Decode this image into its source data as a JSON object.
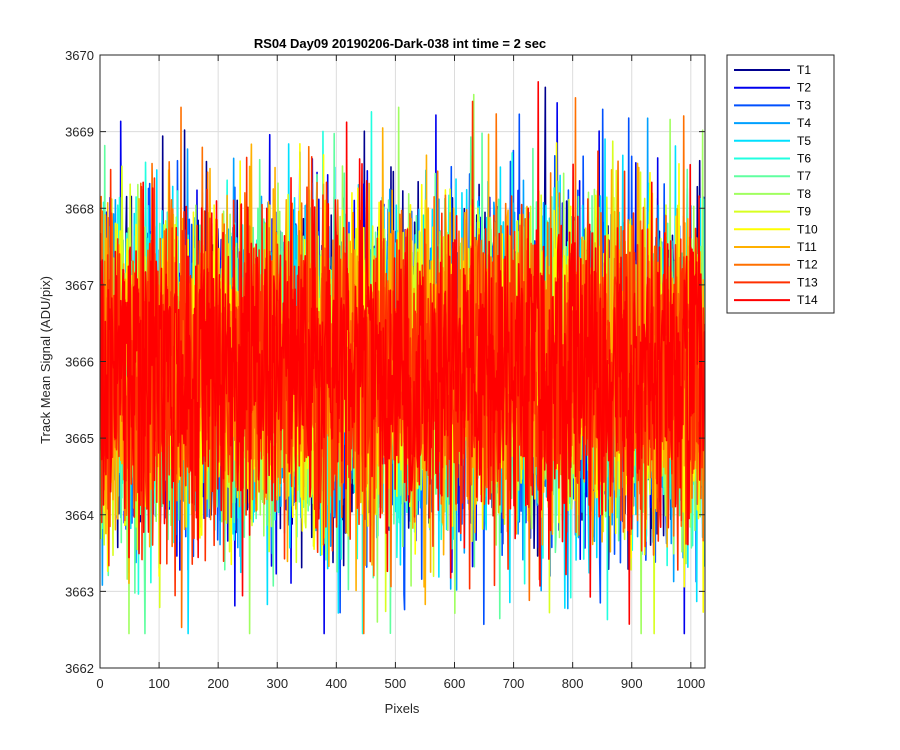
{
  "chart_data": {
    "type": "line",
    "title": "RS04 Day09 20190206-Dark-038 int time = 2 sec",
    "xlabel": "Pixels",
    "ylabel": "Track Mean Signal (ADU/pix)",
    "xlim": [
      0,
      1024
    ],
    "ylim": [
      3662,
      3670
    ],
    "xticks": [
      "0",
      "100",
      "200",
      "300",
      "400",
      "500",
      "600",
      "700",
      "800",
      "900",
      "1000"
    ],
    "yticks": [
      "3662",
      "3663",
      "3664",
      "3665",
      "3666",
      "3667",
      "3668",
      "3669",
      "3670"
    ],
    "grid": true,
    "legend_position": "outside-top-right",
    "points_per_series": 1024,
    "noise_model": {
      "mean": 3665.9,
      "std": 1.05,
      "min": 3662.45,
      "max": 3669.8
    },
    "series": [
      {
        "name": "T1",
        "color": "#00008f"
      },
      {
        "name": "T2",
        "color": "#0000ee"
      },
      {
        "name": "T3",
        "color": "#0050ff"
      },
      {
        "name": "T4",
        "color": "#00a0ff"
      },
      {
        "name": "T5",
        "color": "#00e0ff"
      },
      {
        "name": "T6",
        "color": "#20ffe0"
      },
      {
        "name": "T7",
        "color": "#60ffa0"
      },
      {
        "name": "T8",
        "color": "#a0ff60"
      },
      {
        "name": "T9",
        "color": "#d8ff20"
      },
      {
        "name": "T10",
        "color": "#ffff00"
      },
      {
        "name": "T11",
        "color": "#ffb000"
      },
      {
        "name": "T12",
        "color": "#ff7000"
      },
      {
        "name": "T13",
        "color": "#ff3000"
      },
      {
        "name": "T14",
        "color": "#ff0000"
      }
    ]
  }
}
